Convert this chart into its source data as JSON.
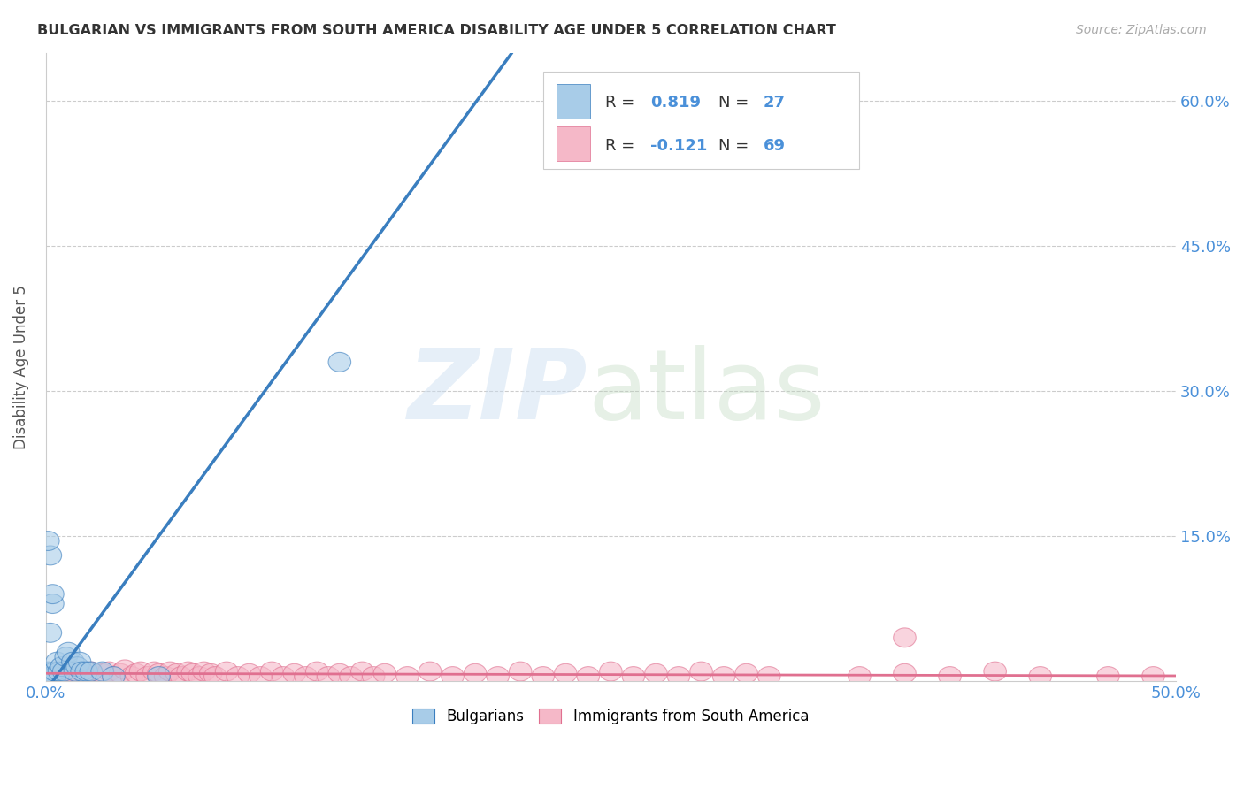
{
  "title": "BULGARIAN VS IMMIGRANTS FROM SOUTH AMERICA DISABILITY AGE UNDER 5 CORRELATION CHART",
  "source": "Source: ZipAtlas.com",
  "ylabel": "Disability Age Under 5",
  "xlim": [
    0.0,
    0.5
  ],
  "ylim": [
    0.0,
    0.65
  ],
  "yticks": [
    0.0,
    0.15,
    0.3,
    0.45,
    0.6
  ],
  "ytick_labels": [
    "",
    "15.0%",
    "30.0%",
    "45.0%",
    "60.0%"
  ],
  "blue_color": "#a8cce8",
  "pink_color": "#f5b8c8",
  "blue_line_color": "#3a7ebf",
  "pink_line_color": "#e07090",
  "axis_label_color": "#4a90d9",
  "title_color": "#333333",
  "legend_r1_label": "R = ",
  "legend_r1_val": "0.819",
  "legend_n1_label": "N = ",
  "legend_n1_val": "27",
  "legend_r2_label": "R = ",
  "legend_r2_val": "-0.121",
  "legend_n2_label": "N = ",
  "legend_n2_val": "69",
  "blue_scatter_x": [
    0.001,
    0.002,
    0.002,
    0.002,
    0.003,
    0.003,
    0.003,
    0.004,
    0.004,
    0.005,
    0.006,
    0.007,
    0.008,
    0.009,
    0.01,
    0.012,
    0.013,
    0.014,
    0.015,
    0.016,
    0.018,
    0.02,
    0.025,
    0.03,
    0.05,
    0.001,
    0.13
  ],
  "blue_scatter_y": [
    0.01,
    0.005,
    0.05,
    0.13,
    0.005,
    0.08,
    0.09,
    0.005,
    0.01,
    0.02,
    0.01,
    0.015,
    0.01,
    0.025,
    0.03,
    0.02,
    0.01,
    0.015,
    0.02,
    0.01,
    0.01,
    0.01,
    0.01,
    0.005,
    0.005,
    0.145,
    0.33
  ],
  "pink_scatter_x": [
    0.005,
    0.008,
    0.01,
    0.012,
    0.015,
    0.018,
    0.02,
    0.022,
    0.025,
    0.028,
    0.03,
    0.033,
    0.035,
    0.038,
    0.04,
    0.042,
    0.045,
    0.048,
    0.05,
    0.053,
    0.055,
    0.058,
    0.06,
    0.063,
    0.065,
    0.068,
    0.07,
    0.073,
    0.075,
    0.08,
    0.085,
    0.09,
    0.095,
    0.1,
    0.105,
    0.11,
    0.115,
    0.12,
    0.125,
    0.13,
    0.135,
    0.14,
    0.145,
    0.15,
    0.16,
    0.17,
    0.18,
    0.19,
    0.2,
    0.21,
    0.22,
    0.23,
    0.24,
    0.25,
    0.26,
    0.27,
    0.28,
    0.29,
    0.3,
    0.31,
    0.32,
    0.36,
    0.38,
    0.4,
    0.42,
    0.44,
    0.47,
    0.49,
    0.38
  ],
  "pink_scatter_y": [
    0.005,
    0.005,
    0.01,
    0.005,
    0.008,
    0.005,
    0.01,
    0.005,
    0.008,
    0.01,
    0.005,
    0.008,
    0.012,
    0.005,
    0.008,
    0.01,
    0.005,
    0.01,
    0.008,
    0.005,
    0.01,
    0.008,
    0.005,
    0.01,
    0.008,
    0.005,
    0.01,
    0.008,
    0.005,
    0.01,
    0.005,
    0.008,
    0.005,
    0.01,
    0.005,
    0.008,
    0.005,
    0.01,
    0.005,
    0.008,
    0.005,
    0.01,
    0.005,
    0.008,
    0.005,
    0.01,
    0.005,
    0.008,
    0.005,
    0.01,
    0.005,
    0.008,
    0.005,
    0.01,
    0.005,
    0.008,
    0.005,
    0.01,
    0.005,
    0.008,
    0.005,
    0.005,
    0.008,
    0.005,
    0.01,
    0.005,
    0.005,
    0.005,
    0.045
  ],
  "blue_slope": 3.2,
  "blue_intercept": -0.01,
  "pink_slope": -0.005,
  "pink_intercept": 0.008
}
